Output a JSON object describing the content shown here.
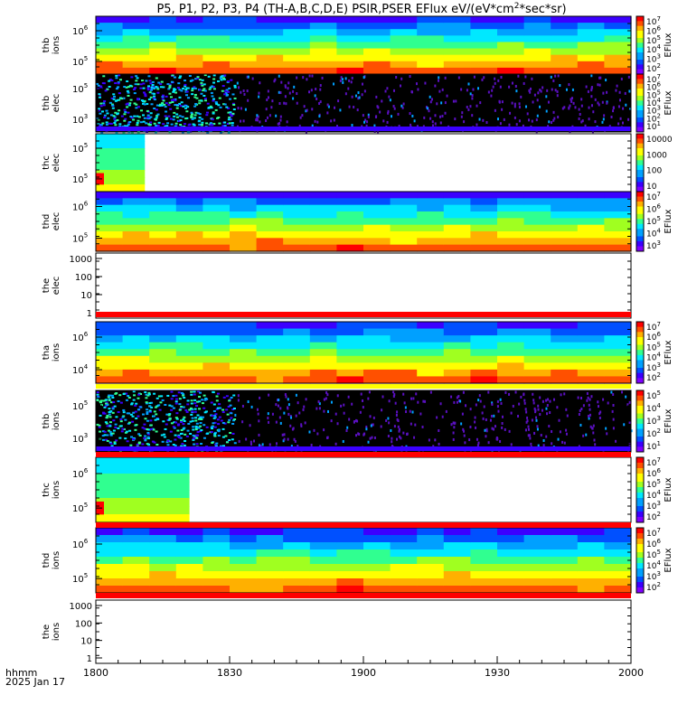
{
  "title": "P5, P1, P2, P3, P4 (TH-A,B,C,D,E) PSIR,PSER EFlux eV/(eV*cm",
  "title_sup": "2",
  "title_end": "*sec*sr)",
  "footer": {
    "line1": "hhmm",
    "line2": "2025 Jan 17"
  },
  "colors": {
    "black": "#000000",
    "red": "#ff0000",
    "yellow": "#ffff00",
    "white": "#ffffff"
  },
  "chart_data": {
    "type": "heatmap",
    "x_ticks": [
      "1800",
      "1830",
      "1900",
      "1930",
      "2000"
    ],
    "x_tick_values_min": [
      0,
      30,
      60,
      90,
      120
    ],
    "xlim_min": [
      0,
      120
    ],
    "panels": [
      {
        "label": [
          "thb",
          "ions"
        ],
        "ylabel_prefix": "",
        "yticks": [
          {
            "b": "10",
            "e": "6"
          },
          {
            "b": "10",
            "e": "5"
          }
        ],
        "kind": "spectrogram",
        "base": "broadband",
        "cb_ticks": [
          "10",
          "10",
          "10",
          "10",
          "10",
          "10"
        ],
        "cb_exps": [
          "7",
          "6",
          "5",
          "4",
          "3",
          "2"
        ],
        "cb_label": "EFlux",
        "data_until_min": 120
      },
      {
        "label": [
          "thb",
          "elec"
        ],
        "kind": "noisy",
        "yticks": [
          {
            "b": "10",
            "e": "5"
          },
          {
            "b": "10",
            "e": "3"
          }
        ],
        "cb_ticks": [
          "10",
          "10",
          "10",
          "10",
          "10",
          "10",
          "10"
        ],
        "cb_exps": [
          "7",
          "6",
          "5",
          "4",
          "3",
          "2",
          "1"
        ],
        "cb_label": "EFlux",
        "dense_until_min": 31
      },
      {
        "label": [
          "thc",
          "elec"
        ],
        "kind": "partial",
        "yticks": [
          {
            "b": "10",
            "e": "5"
          },
          {
            "b": "10",
            "e": "5"
          }
        ],
        "cb_plain": [
          "10000",
          "1000",
          "100",
          "10"
        ],
        "cb_label": "",
        "data_until_min": 11
      },
      {
        "label": [
          "thd",
          "elec"
        ],
        "kind": "spectrogram",
        "yticks": [
          {
            "b": "10",
            "e": "6"
          },
          {
            "b": "10",
            "e": "5"
          }
        ],
        "cb_ticks": [
          "10",
          "10",
          "10",
          "10",
          "10"
        ],
        "cb_exps": [
          "7",
          "6",
          "5",
          "4",
          "3"
        ],
        "cb_label": "EFlux",
        "data_until_min": 120
      },
      {
        "label": [
          "the",
          "elec"
        ],
        "kind": "empty",
        "yticks_plain": [
          "1000",
          "100",
          "10",
          "1"
        ]
      },
      {
        "label": [
          "tha",
          "ions"
        ],
        "kind": "spectrogram",
        "yticks": [
          {
            "b": "10",
            "e": "6"
          },
          {
            "b": "10",
            "e": "4"
          }
        ],
        "cb_ticks": [
          "10",
          "10",
          "10",
          "10",
          "10",
          "10"
        ],
        "cb_exps": [
          "7",
          "6",
          "5",
          "4",
          "3",
          "2"
        ],
        "cb_label": "EFlux",
        "data_until_min": 120
      },
      {
        "label": [
          "thb",
          "ions"
        ],
        "kind": "noisy",
        "yticks": [
          {
            "b": "10",
            "e": "5"
          },
          {
            "b": "10",
            "e": "3"
          }
        ],
        "cb_ticks": [
          "10",
          "10",
          "10",
          "10",
          "10"
        ],
        "cb_exps": [
          "5",
          "4",
          "3",
          "2",
          "1"
        ],
        "cb_label": "EFlux",
        "dense_until_min": 31
      },
      {
        "label": [
          "thc",
          "ions"
        ],
        "kind": "partial",
        "yticks": [
          {
            "b": "10",
            "e": "6"
          },
          {
            "b": "10",
            "e": "5"
          }
        ],
        "cb_ticks": [
          "10",
          "10",
          "10",
          "10",
          "10",
          "10"
        ],
        "cb_exps": [
          "7",
          "6",
          "5",
          "4",
          "3",
          "2"
        ],
        "cb_extra": "1",
        "cb_label": "EFlux",
        "data_until_min": 21
      },
      {
        "label": [
          "thd",
          "ions"
        ],
        "kind": "spectrogram",
        "yticks": [
          {
            "b": "10",
            "e": "6"
          },
          {
            "b": "10",
            "e": "5"
          }
        ],
        "cb_ticks": [
          "10",
          "10",
          "10",
          "10",
          "10",
          "10"
        ],
        "cb_exps": [
          "7",
          "6",
          "5",
          "4",
          "3",
          "2"
        ],
        "cb_label": "EFlux",
        "data_until_min": 120
      },
      {
        "label": [
          "the",
          "ions"
        ],
        "kind": "empty",
        "yticks_plain": [
          "1000",
          "100",
          "10",
          "1"
        ]
      }
    ]
  }
}
